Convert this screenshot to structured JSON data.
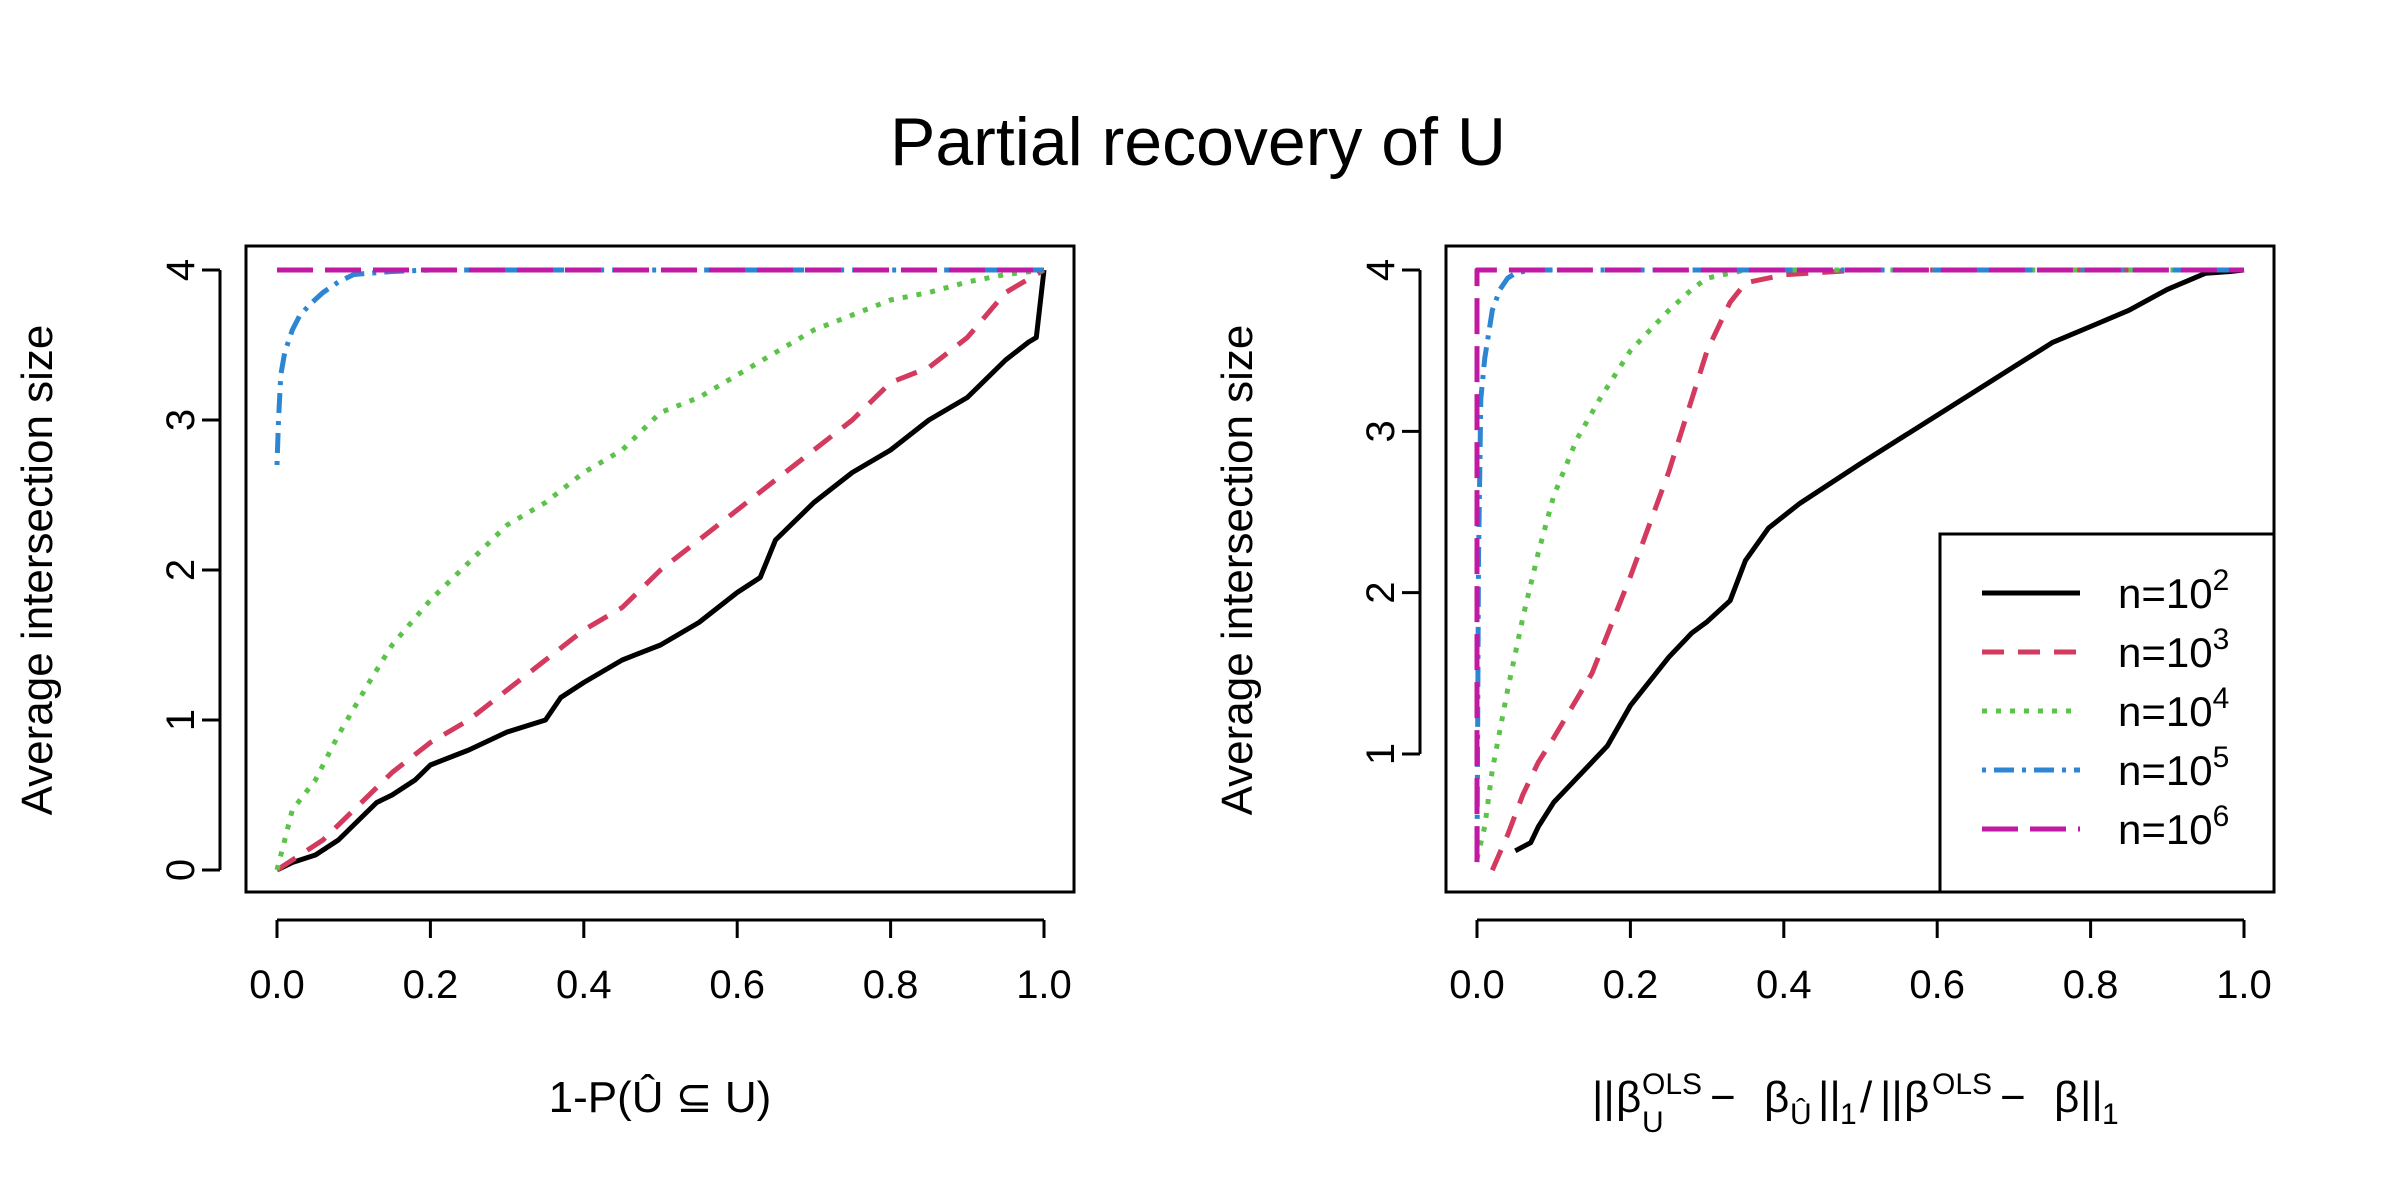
{
  "title": "Partial recovery of U",
  "colors": {
    "n1e2": "#000000",
    "n1e3": "#d33a5e",
    "n1e4": "#5cc34a",
    "n1e5": "#2c86d3",
    "n1e6": "#c019a3"
  },
  "legend": {
    "prefix": "n=10",
    "entries": [
      {
        "series": "n1e2",
        "exp": "2"
      },
      {
        "series": "n1e3",
        "exp": "3"
      },
      {
        "series": "n1e4",
        "exp": "4"
      },
      {
        "series": "n1e5",
        "exp": "5"
      },
      {
        "series": "n1e6",
        "exp": "6"
      }
    ]
  },
  "panels": {
    "left": {
      "ylabel": "Average intersection size",
      "xlabel": "1-P(Û ⊆ U)",
      "xticks": [
        "0.0",
        "0.2",
        "0.4",
        "0.6",
        "0.8",
        "1.0"
      ],
      "yticks": [
        "0",
        "1",
        "2",
        "3",
        "4"
      ]
    },
    "right": {
      "ylabel": "Average intersection size",
      "xlabel_parts": {
        "norm": "||",
        "beta": "β",
        "ols": "OLS",
        "uhat": "Û",
        "minus": " − ",
        "one": "1",
        "slash": "/",
        "plain_beta": "β"
      },
      "xticks": [
        "0.0",
        "0.2",
        "0.4",
        "0.6",
        "0.8",
        "1.0"
      ],
      "yticks": [
        "1",
        "2",
        "3",
        "4"
      ]
    }
  },
  "chart_data": [
    {
      "type": "line",
      "title": "Partial recovery of U",
      "xlabel": "1-P(Û ⊆ U)",
      "ylabel": "Average intersection size",
      "xlim": [
        0,
        1
      ],
      "ylim": [
        0,
        4
      ],
      "series": [
        {
          "name": "n=10^2",
          "key": "n1e2",
          "x": [
            0,
            0.02,
            0.05,
            0.08,
            0.1,
            0.13,
            0.15,
            0.18,
            0.2,
            0.25,
            0.3,
            0.35,
            0.37,
            0.4,
            0.45,
            0.5,
            0.55,
            0.6,
            0.63,
            0.65,
            0.7,
            0.75,
            0.8,
            0.85,
            0.9,
            0.95,
            0.98,
            0.99,
            1.0
          ],
          "y": [
            0,
            0.05,
            0.1,
            0.2,
            0.3,
            0.45,
            0.5,
            0.6,
            0.7,
            0.8,
            0.92,
            1.0,
            1.15,
            1.25,
            1.4,
            1.5,
            1.65,
            1.85,
            1.95,
            2.2,
            2.45,
            2.65,
            2.8,
            3.0,
            3.15,
            3.4,
            3.52,
            3.55,
            4.0
          ]
        },
        {
          "name": "n=10^3",
          "key": "n1e3",
          "x": [
            0,
            0.03,
            0.06,
            0.1,
            0.15,
            0.2,
            0.25,
            0.3,
            0.35,
            0.4,
            0.45,
            0.5,
            0.55,
            0.6,
            0.65,
            0.7,
            0.75,
            0.8,
            0.85,
            0.9,
            0.95,
            1.0
          ],
          "y": [
            0,
            0.1,
            0.2,
            0.4,
            0.65,
            0.85,
            1.0,
            1.2,
            1.4,
            1.6,
            1.75,
            2.0,
            2.2,
            2.4,
            2.6,
            2.8,
            3.0,
            3.25,
            3.35,
            3.55,
            3.85,
            4.0
          ]
        },
        {
          "name": "n=10^4",
          "key": "n1e4",
          "x": [
            0,
            0.01,
            0.02,
            0.05,
            0.08,
            0.12,
            0.15,
            0.2,
            0.25,
            0.3,
            0.35,
            0.4,
            0.45,
            0.5,
            0.55,
            0.6,
            0.65,
            0.7,
            0.75,
            0.8,
            0.85,
            0.9,
            0.95,
            1.0
          ],
          "y": [
            0,
            0.2,
            0.4,
            0.6,
            0.9,
            1.25,
            1.5,
            1.8,
            2.05,
            2.3,
            2.45,
            2.65,
            2.8,
            3.05,
            3.15,
            3.3,
            3.45,
            3.6,
            3.7,
            3.8,
            3.85,
            3.92,
            3.97,
            4.0
          ]
        },
        {
          "name": "n=10^5",
          "key": "n1e5",
          "x": [
            0,
            0.002,
            0.005,
            0.01,
            0.02,
            0.03,
            0.045,
            0.06,
            0.08,
            0.1,
            0.15,
            0.2,
            0.4,
            0.6,
            0.8,
            1.0
          ],
          "y": [
            2.7,
            3.0,
            3.3,
            3.45,
            3.6,
            3.7,
            3.78,
            3.85,
            3.92,
            3.97,
            3.99,
            4.0,
            4.0,
            4.0,
            4.0,
            4.0
          ]
        },
        {
          "name": "n=10^6",
          "key": "n1e6",
          "x": [
            0,
            1.0
          ],
          "y": [
            4.0,
            4.0
          ]
        }
      ]
    },
    {
      "type": "line",
      "xlabel": "||β^OLS_U − β_Û||_1 / ||β^OLS − β||_1",
      "ylabel": "Average intersection size",
      "xlim": [
        0,
        1
      ],
      "ylim": [
        0.3,
        4
      ],
      "legend_position": "bottom-right",
      "series": [
        {
          "name": "n=10^2",
          "key": "n1e2",
          "x": [
            0.05,
            0.07,
            0.08,
            0.1,
            0.12,
            0.15,
            0.17,
            0.2,
            0.25,
            0.28,
            0.3,
            0.33,
            0.35,
            0.38,
            0.42,
            0.5,
            0.6,
            0.7,
            0.75,
            0.8,
            0.85,
            0.9,
            0.95,
            0.98,
            1.0
          ],
          "y": [
            0.4,
            0.45,
            0.55,
            0.7,
            0.8,
            0.95,
            1.05,
            1.3,
            1.6,
            1.75,
            1.82,
            1.95,
            2.2,
            2.4,
            2.55,
            2.8,
            3.1,
            3.4,
            3.55,
            3.65,
            3.75,
            3.88,
            3.98,
            3.99,
            4.0
          ]
        },
        {
          "name": "n=10^3",
          "key": "n1e3",
          "x": [
            0.02,
            0.04,
            0.06,
            0.08,
            0.1,
            0.15,
            0.2,
            0.25,
            0.28,
            0.3,
            0.33,
            0.35,
            0.4,
            0.5,
            0.6,
            0.8,
            1.0
          ],
          "y": [
            0.28,
            0.5,
            0.75,
            0.95,
            1.1,
            1.5,
            2.1,
            2.75,
            3.2,
            3.5,
            3.8,
            3.92,
            3.97,
            4.0,
            4.0,
            4.0,
            4.0
          ]
        },
        {
          "name": "n=10^4",
          "key": "n1e4",
          "x": [
            0,
            0.01,
            0.02,
            0.04,
            0.06,
            0.08,
            0.1,
            0.13,
            0.16,
            0.2,
            0.25,
            0.28,
            0.3,
            0.35,
            0.5,
            0.7,
            1.0
          ],
          "y": [
            0.35,
            0.55,
            0.9,
            1.4,
            1.85,
            2.25,
            2.6,
            2.95,
            3.2,
            3.5,
            3.75,
            3.88,
            3.95,
            4.0,
            4.0,
            4.0,
            4.0
          ]
        },
        {
          "name": "n=10^5",
          "key": "n1e5",
          "x": [
            0,
            0.002,
            0.005,
            0.01,
            0.015,
            0.02,
            0.03,
            0.04,
            0.05,
            0.07,
            0.1,
            0.2,
            0.5,
            1.0
          ],
          "y": [
            0.35,
            2.2,
            3.2,
            3.45,
            3.6,
            3.75,
            3.88,
            3.95,
            3.98,
            4.0,
            4.0,
            4.0,
            4.0,
            4.0
          ]
        },
        {
          "name": "n=10^6",
          "key": "n1e6",
          "x": [
            0,
            0,
            0.005,
            1.0
          ],
          "y": [
            0.33,
            4.0,
            4.0,
            4.0
          ]
        }
      ]
    }
  ]
}
